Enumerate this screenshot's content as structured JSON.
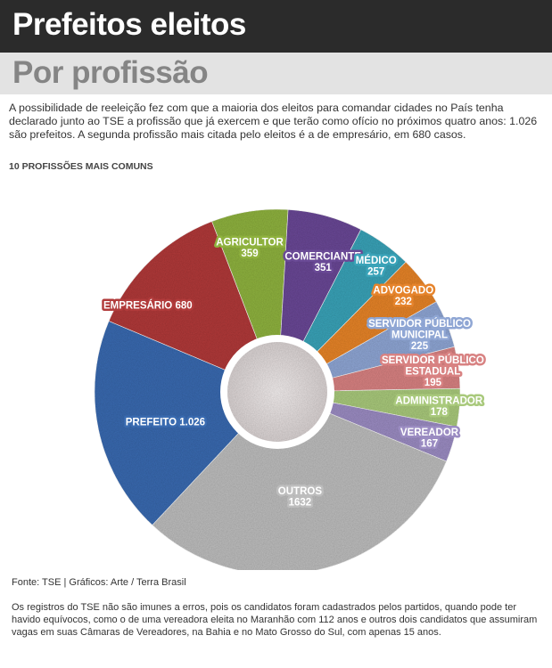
{
  "header": {
    "title": "Prefeitos eleitos",
    "subtitle": "Por profissão"
  },
  "intro_text": "A possibilidade de reeleição fez com que a maioria dos eleitos para comandar cidades no País tenha declarado junto ao TSE a profissão que já exercem e que terão como ofício no próximos quatro anos: 1.026 são prefeitos. A segunda profissão mais citada pelo eleitos é a de empresário, em 680 casos.",
  "section_label": "10 PROFISSÕES MAIS COMUNS",
  "source": "Fonte: TSE  | Gráficos: Arte / Terra Brasil",
  "footnote": "Os registros do TSE não são imunes a erros, pois os candidatos foram cadastrados pelos partidos, quando pode ter havido equívocos, como o de uma vereadora eleita no Maranhão com 112 anos e outros dois candidatos que assumiram vagas em suas Câmaras de Vereadores, na Bahia e no Mato Grosso do Sul, com apenas 15 anos.",
  "chart_data": {
    "type": "pie",
    "categories": [
      "Agricultor",
      "Comerciante",
      "Médico",
      "Advogado",
      "Servidor Público Municipal",
      "Servidor Público Estadual",
      "Administrador",
      "Vereador",
      "Outros",
      "Prefeito",
      "Empresário"
    ],
    "values": [
      359,
      351,
      257,
      232,
      225,
      195,
      178,
      167,
      1632,
      1026,
      680
    ],
    "colors": [
      "#8fb23f",
      "#6a4a96",
      "#3aa3b8",
      "#e6842c",
      "#8fa6d4",
      "#d88282",
      "#a9c97c",
      "#9b8cc2",
      "#bdbdbd",
      "#3a6bb0",
      "#b13b3b"
    ],
    "labels": [
      {
        "lines": [
          "AGRICULTOR",
          "359"
        ]
      },
      {
        "lines": [
          "COMERCIANTE",
          "351"
        ]
      },
      {
        "lines": [
          "MÉDICO",
          "257"
        ]
      },
      {
        "lines": [
          "ADVOGADO",
          "232"
        ]
      },
      {
        "lines": [
          "SERVIDOR PÚBLICO",
          "MUNICIPAL",
          "225"
        ]
      },
      {
        "lines": [
          "SERVIDOR PÚBLICO",
          "ESTADUAL",
          "195"
        ]
      },
      {
        "lines": [
          "ADMINISTRADOR",
          "178"
        ]
      },
      {
        "lines": [
          "VEREADOR",
          "167"
        ]
      },
      {
        "lines": [
          "OUTROS",
          "1632"
        ]
      },
      {
        "lines": [
          "PREFEITO 1.026"
        ]
      },
      {
        "lines": [
          "EMPRESÁRIO 680"
        ]
      }
    ]
  }
}
